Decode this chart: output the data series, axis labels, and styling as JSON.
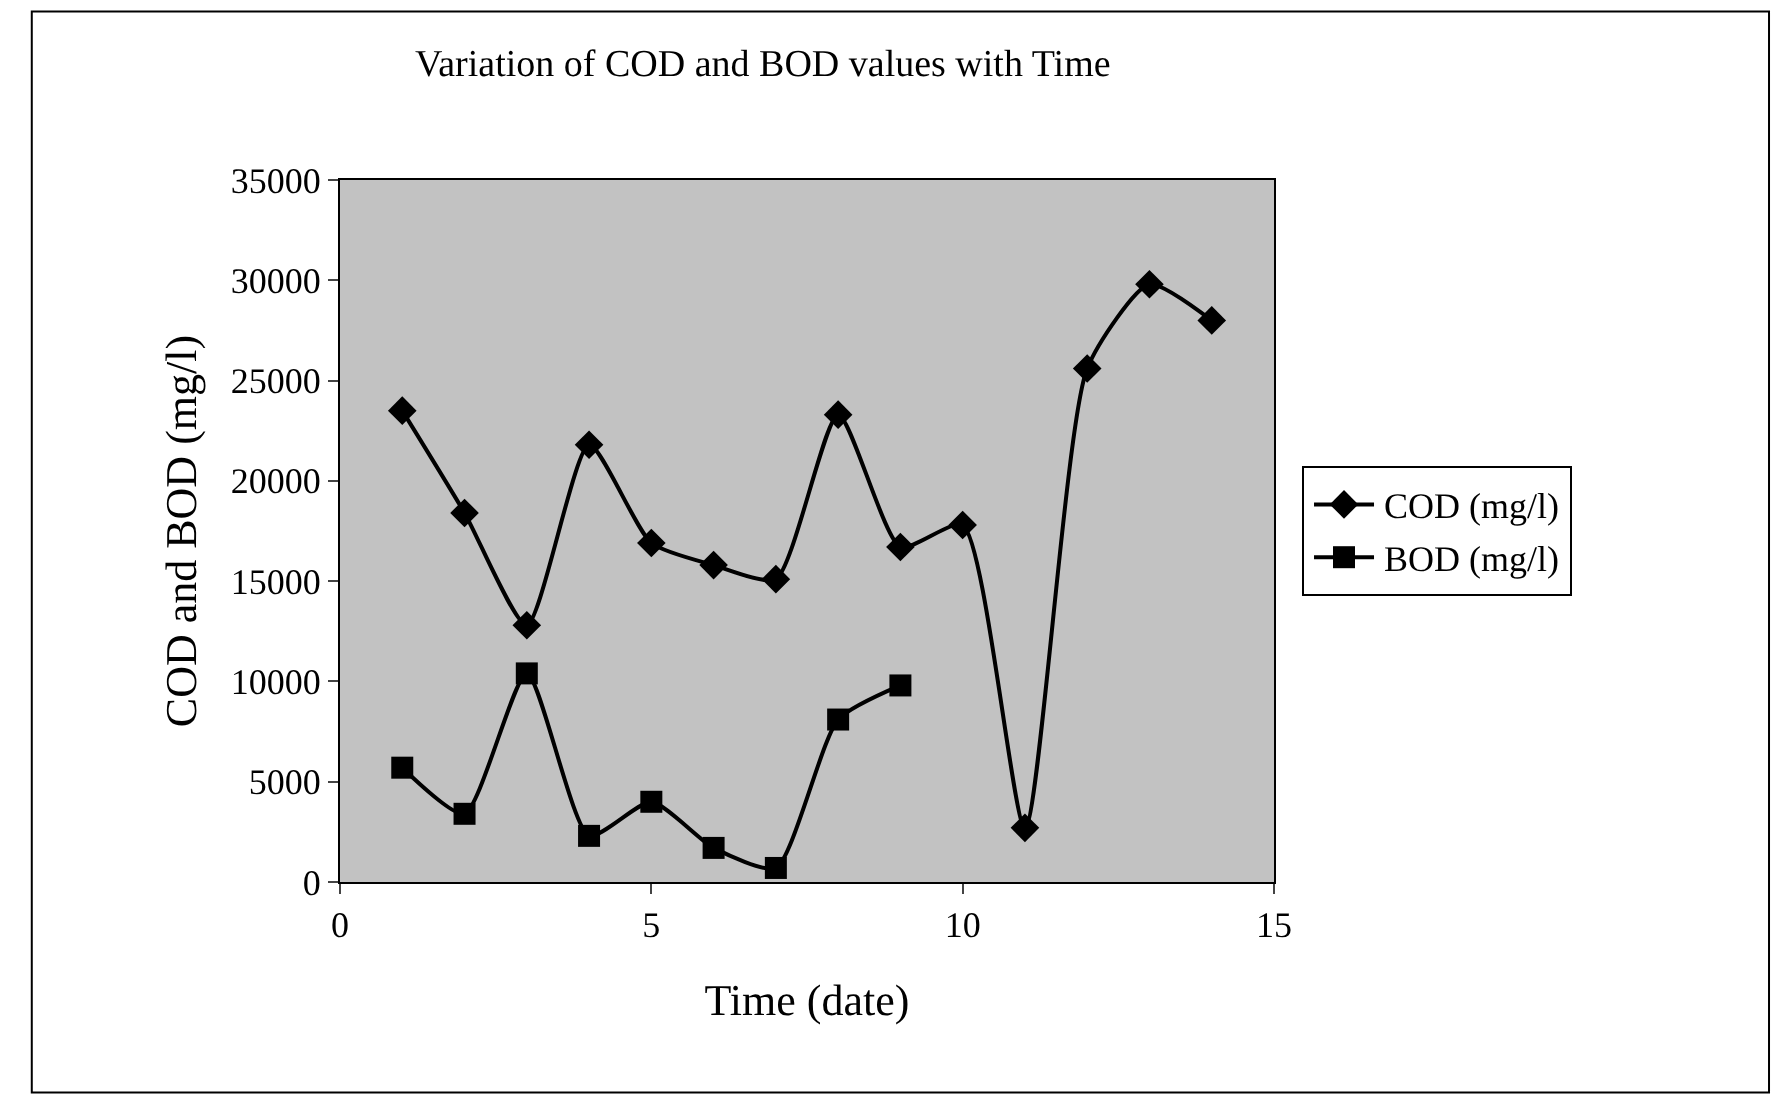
{
  "chart_data": {
    "type": "line",
    "title": "Variation of COD and BOD values with Time",
    "xlabel": "Time (date)",
    "ylabel": "COD and BOD (mg/l)",
    "xlim": [
      0,
      15
    ],
    "xticks": [
      0,
      5,
      10,
      15
    ],
    "ylim": [
      0,
      35000
    ],
    "yticks": [
      0,
      5000,
      10000,
      15000,
      20000,
      25000,
      30000,
      35000
    ],
    "grid": false,
    "legend": "right",
    "series": [
      {
        "name": "COD (mg/l)",
        "color": "#000000",
        "marker": "diamond",
        "x": [
          1,
          2,
          3,
          4,
          5,
          6,
          7,
          8,
          9,
          10,
          11,
          12,
          13,
          14
        ],
        "values": [
          23500,
          18400,
          12800,
          21800,
          16900,
          15800,
          15100,
          23300,
          16700,
          17800,
          2700,
          25600,
          29800,
          28000
        ]
      },
      {
        "name": "BOD (mg/l)",
        "color": "#000000",
        "marker": "square",
        "x": [
          1,
          2,
          3,
          4,
          5,
          6,
          7,
          8,
          9
        ],
        "values": [
          5700,
          3400,
          10400,
          2300,
          4000,
          1700,
          700,
          8100,
          9800
        ]
      }
    ]
  }
}
